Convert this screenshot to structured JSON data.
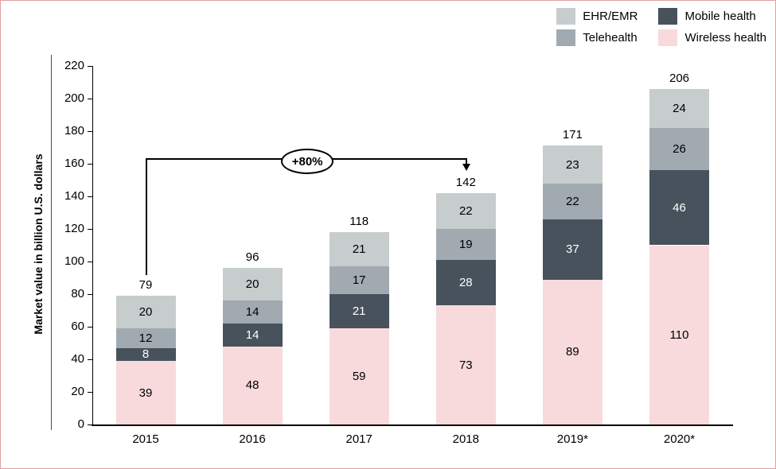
{
  "frame": {
    "border_color": "#e0a1a1",
    "background": "#ffffff"
  },
  "legend": {
    "items": [
      {
        "label": "EHR/EMR",
        "color": "#c6cdcc"
      },
      {
        "label": "Mobile health",
        "color": "#47525c"
      },
      {
        "label": "Telehealth",
        "color": "#a2aab1"
      },
      {
        "label": "Wireless health",
        "color": "#f8dadc"
      }
    ]
  },
  "chart_data": {
    "type": "bar",
    "stacked": true,
    "title": "",
    "xlabel": "",
    "ylabel": "Market value in billion U.S. dollars",
    "categories": [
      "2015",
      "2016",
      "2017",
      "2018",
      "2019*",
      "2020*"
    ],
    "series": [
      {
        "name": "Wireless health",
        "color": "#f8dadc",
        "text_color": "#000000",
        "values": [
          39,
          48,
          59,
          73,
          89,
          110
        ]
      },
      {
        "name": "Mobile health",
        "color": "#47525c",
        "text_color": "#ffffff",
        "values": [
          8,
          14,
          21,
          28,
          37,
          46
        ]
      },
      {
        "name": "Telehealth",
        "color": "#a2aab1",
        "text_color": "#000000",
        "values": [
          12,
          14,
          17,
          19,
          22,
          26
        ]
      },
      {
        "name": "EHR/EMR",
        "color": "#c6cdcc",
        "text_color": "#000000",
        "values": [
          20,
          20,
          21,
          22,
          23,
          24
        ]
      }
    ],
    "totals": [
      79,
      96,
      118,
      142,
      171,
      206
    ],
    "ylim": [
      0,
      220
    ],
    "yticks": [
      0,
      20,
      40,
      60,
      80,
      100,
      120,
      140,
      160,
      180,
      200,
      220
    ],
    "grid": false,
    "legend_position": "top-right",
    "annotation": {
      "text": "+80%",
      "from_category": "2015",
      "to_category": "2018"
    }
  }
}
